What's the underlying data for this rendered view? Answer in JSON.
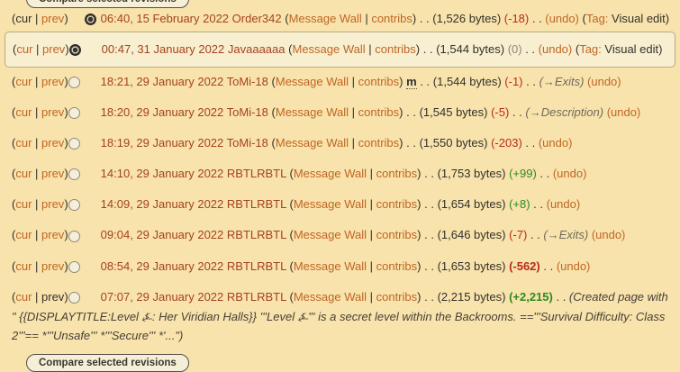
{
  "compare_button": {
    "label": "Compare selected revisions"
  },
  "labels": {
    "paren_open": "(",
    "paren_close": ")",
    "pipe": " | ",
    "cur": "cur",
    "prev": "prev",
    "dots": " . . ",
    "wall": "Message Wall",
    "contribs": "contribs",
    "minor": "m",
    "undo": "(undo)",
    "tag_prefix": "(",
    "tag_label": "Tag:",
    "tag_value": " Visual edit)"
  },
  "colors": {
    "page_background": "#f8e3ac",
    "highlight_background": "#f8efd0",
    "highlight_border": "#b9ab81",
    "link": "#c06524",
    "timestamp_link": "#a5421d",
    "diff_negative": "#bb2a1a",
    "diff_positive": "#2d8a21",
    "diff_zero": "#8c8678",
    "text": "#33302a"
  },
  "rows": [
    {
      "cur_link": false,
      "prev_link": true,
      "radio_col": "b",
      "radio_checked": true,
      "time": "06:40, 15 February 2022",
      "user": "Order342",
      "minor": false,
      "bytes": "(1,526 bytes)",
      "diff": {
        "text": "(-18)",
        "kind": "neg",
        "bold": false
      },
      "section": "",
      "undo": true,
      "tag": true,
      "comment": "",
      "highlighted": false
    },
    {
      "cur_link": true,
      "prev_link": true,
      "radio_col": "a",
      "radio_checked": true,
      "time": "00:47, 31 January 2022",
      "user": "Javaaaaaa",
      "minor": false,
      "bytes": "(1,544 bytes)",
      "diff": {
        "text": "(0)",
        "kind": "zero",
        "bold": false
      },
      "section": "",
      "undo": true,
      "tag": true,
      "comment": "",
      "highlighted": true
    },
    {
      "cur_link": true,
      "prev_link": true,
      "radio_col": "a",
      "radio_checked": false,
      "time": "18:21, 29 January 2022",
      "user": "ToMi-18",
      "minor": true,
      "bytes": "(1,544 bytes)",
      "diff": {
        "text": "(-1)",
        "kind": "neg",
        "bold": false
      },
      "section": "(→Exits)",
      "undo": true,
      "tag": false,
      "comment": "",
      "highlighted": false
    },
    {
      "cur_link": true,
      "prev_link": true,
      "radio_col": "a",
      "radio_checked": false,
      "time": "18:20, 29 January 2022",
      "user": "ToMi-18",
      "minor": false,
      "bytes": "(1,545 bytes)",
      "diff": {
        "text": "(-5)",
        "kind": "neg",
        "bold": false
      },
      "section": "(→Description)",
      "undo": true,
      "tag": false,
      "comment": "",
      "highlighted": false
    },
    {
      "cur_link": true,
      "prev_link": true,
      "radio_col": "a",
      "radio_checked": false,
      "time": "18:19, 29 January 2022",
      "user": "ToMi-18",
      "minor": false,
      "bytes": "(1,550 bytes)",
      "diff": {
        "text": "(-203)",
        "kind": "neg",
        "bold": false
      },
      "section": "",
      "undo": true,
      "tag": false,
      "comment": "",
      "highlighted": false
    },
    {
      "cur_link": true,
      "prev_link": true,
      "radio_col": "a",
      "radio_checked": false,
      "time": "14:10, 29 January 2022",
      "user": "RBTLRBTL",
      "minor": false,
      "bytes": "(1,753 bytes)",
      "diff": {
        "text": "(+99)",
        "kind": "pos",
        "bold": false
      },
      "section": "",
      "undo": true,
      "tag": false,
      "comment": "",
      "highlighted": false
    },
    {
      "cur_link": true,
      "prev_link": true,
      "radio_col": "a",
      "radio_checked": false,
      "time": "14:09, 29 January 2022",
      "user": "RBTLRBTL",
      "minor": false,
      "bytes": "(1,654 bytes)",
      "diff": {
        "text": "(+8)",
        "kind": "pos",
        "bold": false
      },
      "section": "",
      "undo": true,
      "tag": false,
      "comment": "",
      "highlighted": false
    },
    {
      "cur_link": true,
      "prev_link": true,
      "radio_col": "a",
      "radio_checked": false,
      "time": "09:04, 29 January 2022",
      "user": "RBTLRBTL",
      "minor": false,
      "bytes": "(1,646 bytes)",
      "diff": {
        "text": "(-7)",
        "kind": "neg",
        "bold": false
      },
      "section": "(→Exits)",
      "undo": true,
      "tag": false,
      "comment": "",
      "highlighted": false
    },
    {
      "cur_link": true,
      "prev_link": true,
      "radio_col": "a",
      "radio_checked": false,
      "time": "08:54, 29 January 2022",
      "user": "RBTLRBTL",
      "minor": false,
      "bytes": "(1,653 bytes)",
      "diff": {
        "text": "(-562)",
        "kind": "neg",
        "bold": true
      },
      "section": "",
      "undo": true,
      "tag": false,
      "comment": "",
      "highlighted": false
    },
    {
      "cur_link": true,
      "prev_link": false,
      "radio_col": "a",
      "radio_checked": false,
      "time": "07:07, 29 January 2022",
      "user": "RBTLRBTL",
      "minor": false,
      "bytes": "(2,215 bytes)",
      "diff": {
        "text": "(+2,215)",
        "kind": "pos",
        "bold": true
      },
      "section": "",
      "undo": false,
      "tag": false,
      "comment": "(Created page with \" {{DISPLAYTITLE:Level ⍼: Her Viridian Halls}} '''Level ⍼''' is a secret level within the Backrooms. =='''Survival Difficulty: Class 2'''== *'''Unsafe''' *'''Secure''' *'...\")",
      "highlighted": false
    }
  ]
}
